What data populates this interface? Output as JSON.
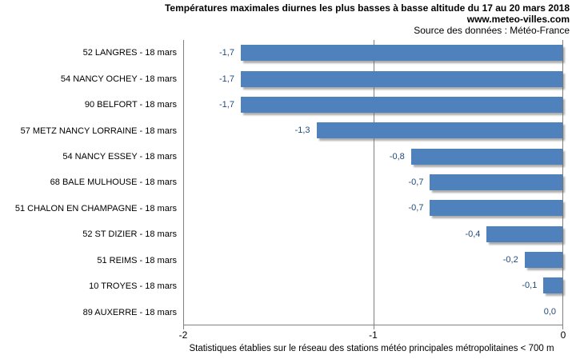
{
  "header": {
    "line1": "Températures maximales diurnes les plus basses à basse altitude du 17 au 20 mars 2018",
    "line2": "www.meteo-villes.com",
    "line3": "Source des données : Météo-France"
  },
  "chart_data": {
    "type": "bar",
    "orientation": "horizontal",
    "categories": [
      "52 LANGRES - 18 mars",
      "54 NANCY OCHEY - 18 mars",
      "90 BELFORT - 18 mars",
      "57 METZ NANCY LORRAINE - 18 mars",
      "54 NANCY ESSEY - 18 mars",
      "68 BALE MULHOUSE - 18 mars",
      "51 CHALON EN CHAMPAGNE - 18 mars",
      "52 ST DIZIER - 18 mars",
      "51 REIMS - 18 mars",
      "10 TROYES - 18 mars",
      "89 AUXERRE - 18 mars"
    ],
    "values": [
      -1.7,
      -1.7,
      -1.7,
      -1.3,
      -0.8,
      -0.7,
      -0.7,
      -0.4,
      -0.2,
      -0.1,
      0.0
    ],
    "value_labels": [
      "-1,7",
      "-1,7",
      "-1,7",
      "-1,3",
      "-0,8",
      "-0,7",
      "-0,7",
      "-0,4",
      "-0,2",
      "-0,1",
      "0,0"
    ],
    "xlim": [
      -2,
      0
    ],
    "x_ticks": [
      "-2",
      "-1",
      "0"
    ],
    "grid": "vertical-line-at--1",
    "legend": "none",
    "bar_color": "#4F81BD",
    "value_label_color": "#1F497D",
    "axis_line_color": "#808080",
    "footnote": "Statistiques établies sur le réseau des stations météo principales métropolitaines < 700 m"
  }
}
